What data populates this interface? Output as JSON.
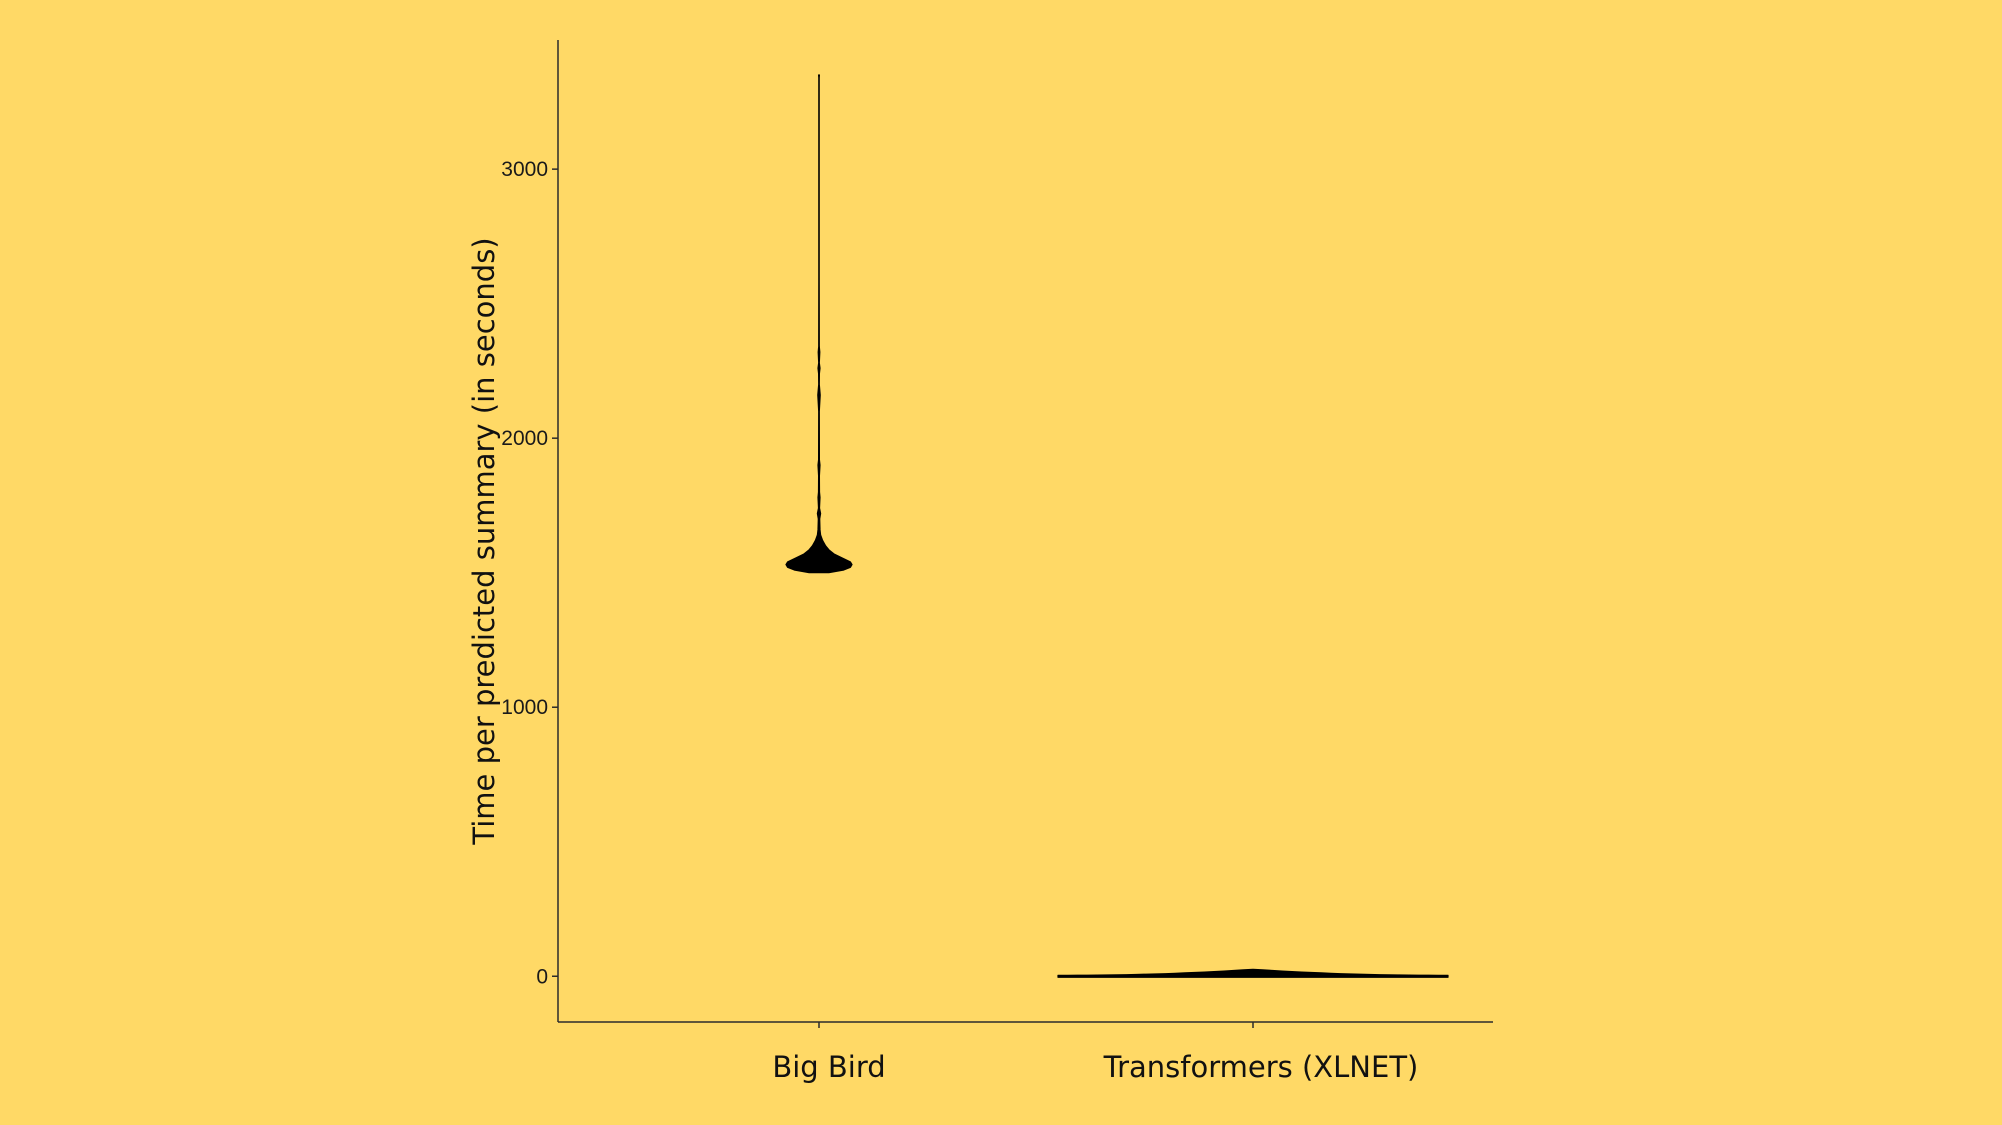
{
  "colors": {
    "background": "#FFD966",
    "axis": "#2b2b2b",
    "violin_fill": "#000000"
  },
  "chart_data": {
    "type": "violin",
    "title": "",
    "xlabel": "",
    "ylabel": "Time per predicted summary (in seconds)",
    "ylim": [
      -170,
      3480
    ],
    "yticks": [
      0,
      1000,
      2000,
      3000
    ],
    "ytick_labels": [
      "0",
      "1000",
      "2000",
      "3000"
    ],
    "grid": false,
    "categories": [
      "Big Bird",
      "Transformers (XLNET)"
    ],
    "series": [
      {
        "category": "Big Bird",
        "range": [
          1500,
          3350
        ],
        "median": 1540,
        "density_profile": [
          [
            1500,
            0.3
          ],
          [
            1510,
            0.75
          ],
          [
            1520,
            0.95
          ],
          [
            1530,
            1.0
          ],
          [
            1540,
            0.95
          ],
          [
            1555,
            0.7
          ],
          [
            1570,
            0.45
          ],
          [
            1585,
            0.3
          ],
          [
            1600,
            0.2
          ],
          [
            1620,
            0.11
          ],
          [
            1640,
            0.05
          ],
          [
            1660,
            0.03
          ],
          [
            1700,
            0.02
          ],
          [
            1720,
            0.05
          ],
          [
            1740,
            0.015
          ],
          [
            1780,
            0.03
          ],
          [
            1800,
            0.015
          ],
          [
            1860,
            0.012
          ],
          [
            1900,
            0.03
          ],
          [
            1920,
            0.012
          ],
          [
            2100,
            0.01
          ],
          [
            2160,
            0.035
          ],
          [
            2200,
            0.01
          ],
          [
            2240,
            0.012
          ],
          [
            2260,
            0.03
          ],
          [
            2280,
            0.01
          ],
          [
            2320,
            0.025
          ],
          [
            2340,
            0.008
          ],
          [
            2600,
            0.007
          ],
          [
            3000,
            0.006
          ],
          [
            3340,
            0.006
          ],
          [
            3350,
            0.012
          ]
        ]
      },
      {
        "category": "Transformers (XLNET)",
        "range": [
          0,
          30
        ],
        "median": 10,
        "density_profile": [
          [
            0,
            1.0
          ],
          [
            5,
            0.85
          ],
          [
            10,
            0.65
          ],
          [
            15,
            0.45
          ],
          [
            20,
            0.3
          ],
          [
            25,
            0.2
          ],
          [
            30,
            0.0
          ]
        ],
        "half_width_profile_note": ""
      }
    ]
  }
}
